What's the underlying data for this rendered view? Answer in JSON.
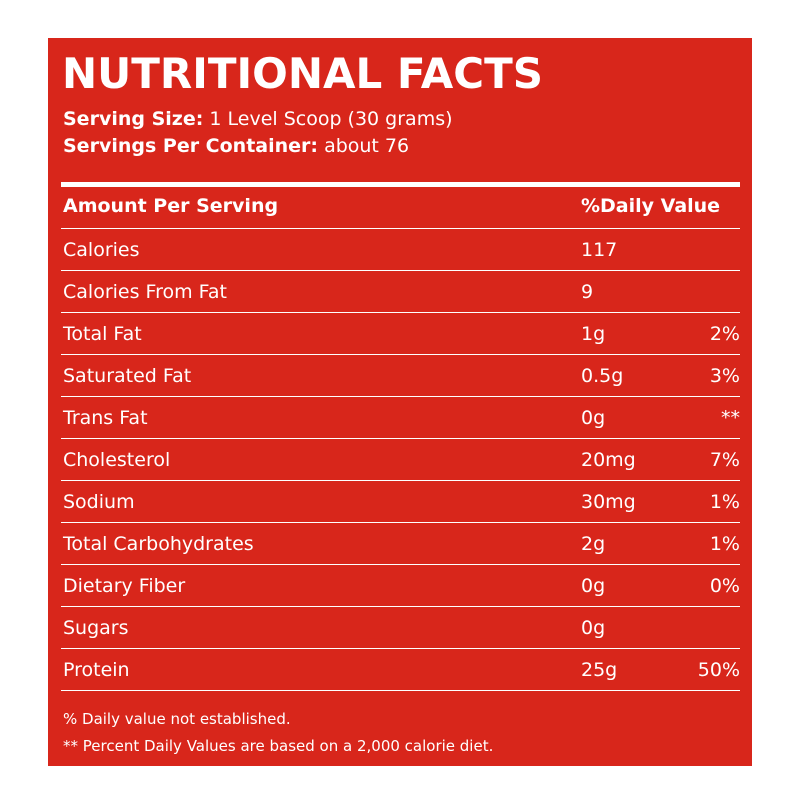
{
  "title": "NUTRITIONAL FACTS",
  "serving": {
    "size_label": "Serving Size:",
    "size_value": "1 Level Scoop (30 grams)",
    "count_label": "Servings Per Container:",
    "count_value": "about 76"
  },
  "header": {
    "amount_label": "Amount Per Serving",
    "dv_label": "%Daily Value"
  },
  "rows": [
    {
      "name": "Calories",
      "amount": "117",
      "dv": ""
    },
    {
      "name": "Calories From Fat",
      "amount": "9",
      "dv": ""
    },
    {
      "name": "Total Fat",
      "amount": "1g",
      "dv": "2%"
    },
    {
      "name": "Saturated Fat",
      "amount": "0.5g",
      "dv": "3%"
    },
    {
      "name": "Trans Fat",
      "amount": "0g",
      "dv": "**"
    },
    {
      "name": "Cholesterol",
      "amount": "20mg",
      "dv": "7%"
    },
    {
      "name": "Sodium",
      "amount": "30mg",
      "dv": "1%"
    },
    {
      "name": "Total Carbohydrates",
      "amount": "2g",
      "dv": "1%"
    },
    {
      "name": "Dietary Fiber",
      "amount": "0g",
      "dv": "0%"
    },
    {
      "name": "Sugars",
      "amount": "0g",
      "dv": ""
    },
    {
      "name": "Protein",
      "amount": "25g",
      "dv": "50%"
    }
  ],
  "footnotes": {
    "line1": "% Daily value not established.",
    "line2": "** Percent Daily Values are based on a 2,000 calorie diet."
  },
  "colors": {
    "panel_bg": "#d8261b",
    "text": "#ffffff",
    "page_bg": "#ffffff"
  }
}
